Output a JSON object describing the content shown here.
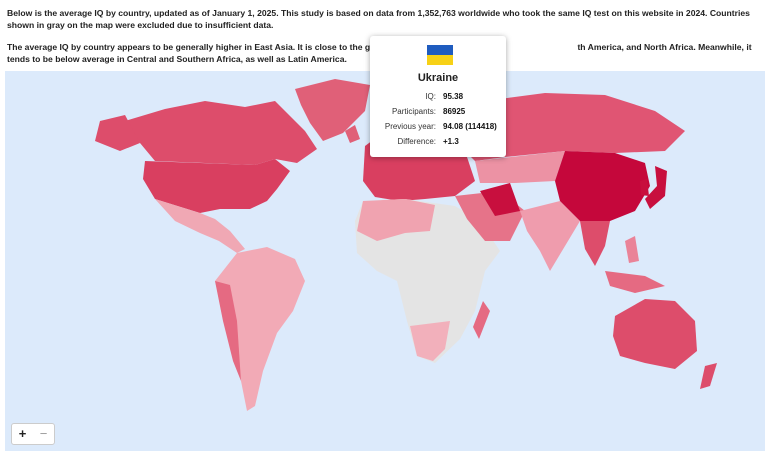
{
  "intro": "Below is the average IQ by country, updated as of January 1, 2025. This study is based on data from 1,352,763 worldwide who took the same IQ test on this website in 2024. Countries shown in gray on the map were excluded due to insufficient data.",
  "summary_before": "The average IQ by country appears to be generally higher in East Asia. It is close to the global average",
  "summary_after": "th America, and North Africa. Meanwhile, it tends to be below average in Central and Southern Africa, as well as Latin America.",
  "tooltip": {
    "country": "Ukraine",
    "rows": [
      {
        "label": "IQ:",
        "value": "95.38"
      },
      {
        "label": "Participants:",
        "value": "86925"
      },
      {
        "label": "Previous year:",
        "value": "94.08 (114418)"
      },
      {
        "label": "Difference:",
        "value": "+1.3"
      }
    ]
  },
  "zoom": {
    "in": "+",
    "out": "−"
  }
}
